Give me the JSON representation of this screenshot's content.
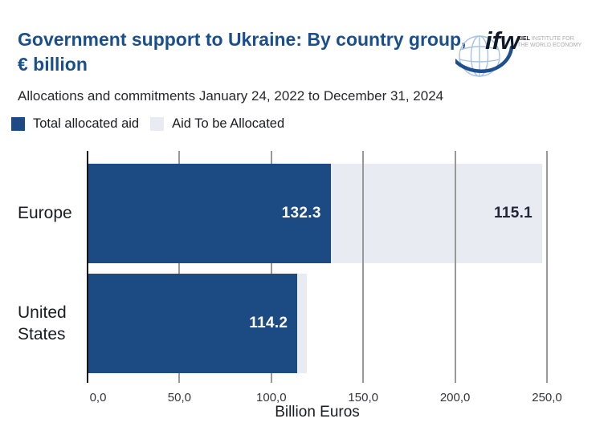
{
  "header": {
    "title": "Government support to Ukraine: By country group, € billion",
    "subtitle": "Allocations and commitments January 24, 2022 to December 31, 2024"
  },
  "logo": {
    "short_name": "ifw",
    "institute_bold": "KIEL",
    "institute_rest": " INSTITUTE FOR",
    "institute_line2": "THE WORLD ECONOMY"
  },
  "legend": {
    "items": [
      {
        "label": "Total allocated aid",
        "color": "#1C4A82"
      },
      {
        "label": "Aid To be Allocated",
        "color": "#E9EBF2"
      }
    ]
  },
  "chart_data": {
    "type": "bar",
    "orientation": "horizontal",
    "stacked": true,
    "title": "Government support to Ukraine: By country group, € billion",
    "subtitle": "Allocations and commitments January 24, 2022 to December 31, 2024",
    "xlabel": "Billion Euros",
    "xlim": [
      0,
      250
    ],
    "grid": "vertical",
    "legend_position": "top-left",
    "categories": [
      "Europe",
      "United States"
    ],
    "series": [
      {
        "name": "Total allocated aid",
        "color": "#1C4A82",
        "values": [
          132.3,
          114.2
        ],
        "data_labels": [
          "132.3",
          "114.2"
        ],
        "label_color": "#FFFFFF"
      },
      {
        "name": "Aid To be Allocated",
        "color": "#E9EBF2",
        "values": [
          115.1,
          4.8
        ],
        "data_labels": [
          "115.1",
          ""
        ],
        "label_color": "#21263A"
      }
    ],
    "x_ticks": [
      {
        "value": 0,
        "label": "0,0"
      },
      {
        "value": 50,
        "label": "50,0"
      },
      {
        "value": 100,
        "label": "100,0"
      },
      {
        "value": 150,
        "label": "150,0"
      },
      {
        "value": 200,
        "label": "200,0"
      },
      {
        "value": 250,
        "label": "250,0"
      }
    ]
  },
  "colors": {
    "title": "#1A4E8C",
    "bar_dark": "#1C4A82",
    "bar_light": "#E9EBF2",
    "gridline": "#999999",
    "axis": "#121212",
    "background": "#FFFFFF"
  }
}
